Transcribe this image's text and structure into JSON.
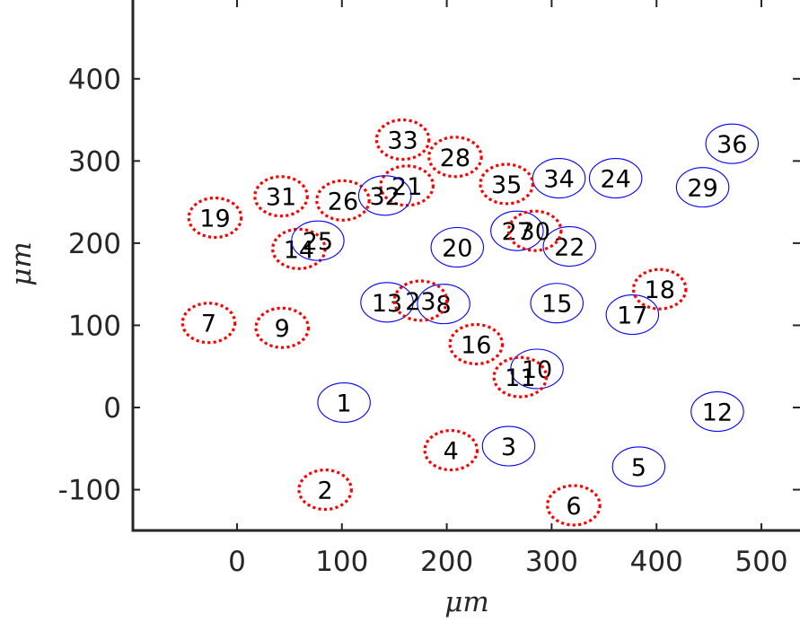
{
  "chart_data": {
    "type": "scatter",
    "title": "",
    "xlabel": "μm",
    "ylabel": "μm",
    "xlim": [
      -100,
      530
    ],
    "ylim": [
      -150,
      500
    ],
    "xticks": [
      0,
      100,
      200,
      300,
      400,
      500
    ],
    "yticks": [
      -100,
      0,
      100,
      200,
      300,
      400
    ],
    "xtick_labels": [
      "0",
      "100",
      "200",
      "300",
      "400",
      "500"
    ],
    "ytick_labels": [
      "-100",
      "0",
      "100",
      "200",
      "300",
      "400"
    ],
    "box": true,
    "grid": false,
    "marker_size_um": [
      25,
      24
    ],
    "styles": {
      "solid": {
        "color": "#0000ff",
        "dash": "solid"
      },
      "dotted": {
        "color": "#ff0000",
        "dash": "dotted"
      }
    },
    "points": [
      {
        "id": "1",
        "x": 102,
        "y": 6,
        "style": "solid"
      },
      {
        "id": "2",
        "x": 84,
        "y": -100,
        "style": "dotted"
      },
      {
        "id": "3",
        "x": 259,
        "y": -47,
        "style": "solid"
      },
      {
        "id": "4",
        "x": 204,
        "y": -52,
        "style": "dotted"
      },
      {
        "id": "5",
        "x": 383,
        "y": -72,
        "style": "solid"
      },
      {
        "id": "6",
        "x": 321,
        "y": -119,
        "style": "dotted"
      },
      {
        "id": "7",
        "x": -27,
        "y": 103,
        "style": "dotted"
      },
      {
        "id": "8",
        "x": 197,
        "y": 126,
        "style": "solid"
      },
      {
        "id": "9",
        "x": 43,
        "y": 97,
        "style": "dotted"
      },
      {
        "id": "10",
        "x": 286,
        "y": 47,
        "style": "solid"
      },
      {
        "id": "11",
        "x": 270,
        "y": 37,
        "style": "dotted"
      },
      {
        "id": "12",
        "x": 458,
        "y": -5,
        "style": "solid"
      },
      {
        "id": "13",
        "x": 143,
        "y": 128,
        "style": "solid"
      },
      {
        "id": "14",
        "x": 59,
        "y": 193,
        "style": "dotted"
      },
      {
        "id": "15",
        "x": 305,
        "y": 127,
        "style": "solid"
      },
      {
        "id": "16",
        "x": 228,
        "y": 77,
        "style": "dotted"
      },
      {
        "id": "17",
        "x": 377,
        "y": 113,
        "style": "solid"
      },
      {
        "id": "18",
        "x": 403,
        "y": 144,
        "style": "dotted"
      },
      {
        "id": "19",
        "x": -21,
        "y": 231,
        "style": "dotted"
      },
      {
        "id": "20",
        "x": 210,
        "y": 195,
        "style": "solid"
      },
      {
        "id": "21",
        "x": 162,
        "y": 270,
        "style": "dotted"
      },
      {
        "id": "22",
        "x": 317,
        "y": 196,
        "style": "solid"
      },
      {
        "id": "23",
        "x": 175,
        "y": 130,
        "style": "dotted"
      },
      {
        "id": "24",
        "x": 361,
        "y": 279,
        "style": "solid"
      },
      {
        "id": "25",
        "x": 77,
        "y": 203,
        "style": "solid"
      },
      {
        "id": "26",
        "x": 101,
        "y": 252,
        "style": "dotted"
      },
      {
        "id": "27",
        "x": 267,
        "y": 215,
        "style": "solid"
      },
      {
        "id": "28",
        "x": 208,
        "y": 305,
        "style": "dotted"
      },
      {
        "id": "29",
        "x": 444,
        "y": 268,
        "style": "solid"
      },
      {
        "id": "30",
        "x": 284,
        "y": 215,
        "style": "dotted"
      },
      {
        "id": "31",
        "x": 42,
        "y": 257,
        "style": "dotted"
      },
      {
        "id": "32",
        "x": 141,
        "y": 258,
        "style": "solid"
      },
      {
        "id": "33",
        "x": 158,
        "y": 326,
        "style": "dotted"
      },
      {
        "id": "34",
        "x": 307,
        "y": 279,
        "style": "solid"
      },
      {
        "id": "35",
        "x": 257,
        "y": 272,
        "style": "dotted"
      },
      {
        "id": "36",
        "x": 472,
        "y": 321,
        "style": "solid"
      }
    ]
  }
}
